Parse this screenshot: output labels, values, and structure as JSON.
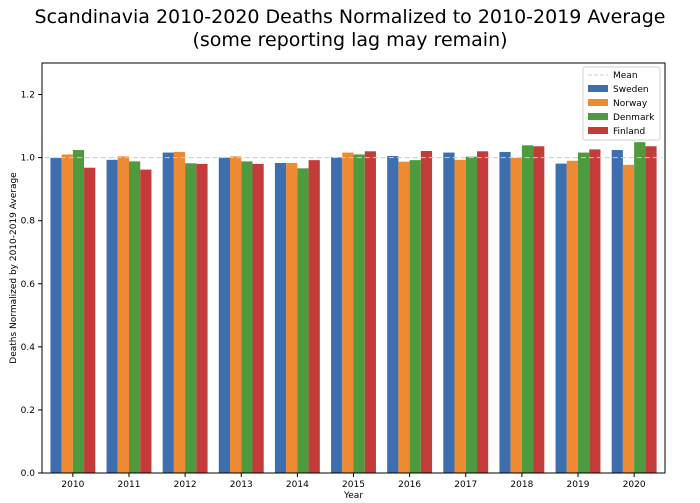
{
  "chart_data": {
    "type": "bar",
    "title": "Scandinavia 2010-2020 Deaths Normalized to 2010-2019 Average",
    "subtitle": "(some reporting lag may remain)",
    "xlabel": "Year",
    "ylabel": "Deaths Normalized by 2010-2019 Average",
    "ylim": [
      0,
      1.3
    ],
    "yticks": [
      "0.0",
      "0.2",
      "0.4",
      "0.6",
      "0.8",
      "1.0",
      "1.2"
    ],
    "ytick_values": [
      0,
      0.2,
      0.4,
      0.6,
      0.8,
      1.0,
      1.2
    ],
    "categories": [
      "2010",
      "2011",
      "2012",
      "2013",
      "2014",
      "2015",
      "2016",
      "2017",
      "2018",
      "2019",
      "2020"
    ],
    "mean_line": {
      "label": "Mean",
      "value": 1.0,
      "color": "#cccccc"
    },
    "series": [
      {
        "name": "Sweden",
        "color": "#3d6fb0",
        "values": [
          0.999,
          0.993,
          1.016,
          1.0,
          0.983,
          1.001,
          1.005,
          1.016,
          1.018,
          0.981,
          1.024
        ]
      },
      {
        "name": "Norway",
        "color": "#ee8a31",
        "values": [
          1.01,
          1.004,
          1.018,
          1.004,
          0.983,
          1.016,
          0.987,
          0.993,
          0.999,
          0.99,
          0.977
        ]
      },
      {
        "name": "Denmark",
        "color": "#4e9a3e",
        "values": [
          1.024,
          0.988,
          0.982,
          0.988,
          0.966,
          1.01,
          0.992,
          1.003,
          1.039,
          1.016,
          1.049
        ]
      },
      {
        "name": "Finland",
        "color": "#c43c3a",
        "values": [
          0.968,
          0.962,
          0.98,
          0.98,
          0.992,
          1.02,
          1.021,
          1.02,
          1.036,
          1.026,
          1.036
        ]
      }
    ],
    "legend": "top-right",
    "grid": false
  }
}
